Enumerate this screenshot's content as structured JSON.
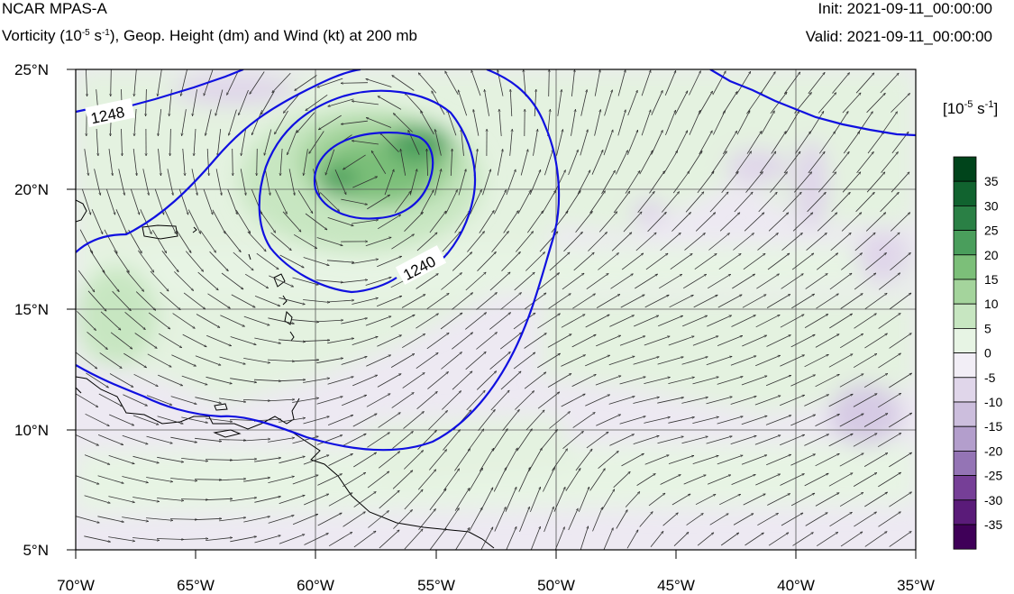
{
  "header": {
    "title": "NCAR MPAS-A",
    "subtitle_main": "Vorticity (10",
    "subtitle_exp1": "-5",
    "subtitle_mid": " s",
    "subtitle_exp2": "-1",
    "subtitle_rest": "), Geop. Height (dm) and Wind (kt) at 200 mb",
    "init": "Init: 2021-09-11_00:00:00",
    "valid": "Valid: 2021-09-11_00:00:00"
  },
  "map": {
    "lon_range": [
      -70,
      -35
    ],
    "lat_range": [
      5,
      25
    ],
    "lon_ticks": [
      "70°W",
      "65°W",
      "60°W",
      "55°W",
      "50°W",
      "45°W",
      "40°W",
      "35°W"
    ],
    "lat_ticks": [
      "25°N",
      "20°N",
      "15°N",
      "10°N",
      "5°N"
    ],
    "contour_labels": [
      "1248",
      "1240"
    ],
    "contour_color": "#1010e0"
  },
  "colorbar": {
    "unit_base": "[10",
    "unit_exp1": "-5",
    "unit_mid": " s",
    "unit_exp2": "-1",
    "unit_end": "]",
    "labels": [
      "35",
      "30",
      "25",
      "20",
      "15",
      "10",
      "5",
      "0",
      "-5",
      "-10",
      "-15",
      "-20",
      "-25",
      "-30",
      "-35"
    ],
    "colors": [
      "#00441b",
      "#11632f",
      "#2a8045",
      "#4a9e5c",
      "#7cbf79",
      "#a4d49c",
      "#c7e6c1",
      "#e7f4e4",
      "#f2eef6",
      "#e0d6ea",
      "#ccbedd",
      "#b39ecc",
      "#9474b5",
      "#763f97",
      "#5a1b79",
      "#3f0058"
    ]
  }
}
